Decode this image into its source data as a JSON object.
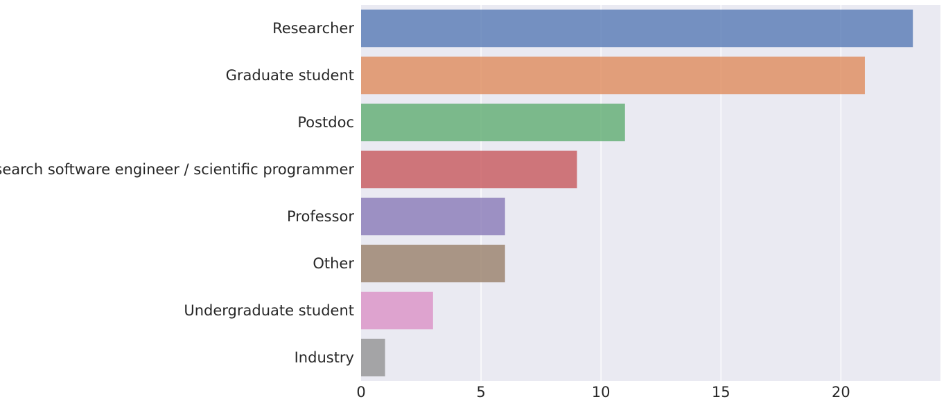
{
  "chart_data": {
    "type": "bar",
    "orientation": "horizontal",
    "title": "",
    "xlabel": "",
    "ylabel": "",
    "categories": [
      "Researcher",
      "Graduate student",
      "Postdoc",
      "Research software engineer / scientific programmer",
      "Professor",
      "Other",
      "Undergraduate student",
      "Industry"
    ],
    "values": [
      23,
      21,
      11,
      9,
      6,
      6,
      3,
      1
    ],
    "colors": [
      "#4c72b0",
      "#dd8452",
      "#55a868",
      "#c44e52",
      "#8172b3",
      "#937860",
      "#da8bc3",
      "#8c8c8c"
    ],
    "xlim": [
      0,
      24.15
    ],
    "xticks": [
      0,
      5,
      10,
      15,
      20
    ],
    "grid": true,
    "background_color": "#eaeaf2",
    "bar_opacity": 0.75,
    "legend": "none"
  }
}
